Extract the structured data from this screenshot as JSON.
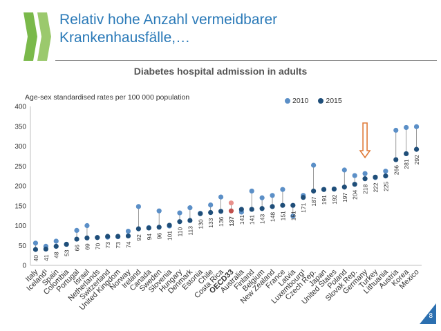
{
  "header": {
    "title_line1": "Relativ hohe Anzahl vermeidbarer",
    "title_line2": "Krankenhausfälle,…"
  },
  "page": {
    "number": "8"
  },
  "colors": {
    "c2010": "#5b8fc7",
    "c2015": "#1f4e79",
    "highlight2010": "#e8908b",
    "highlight2015": "#c0504d",
    "arrow": "#e07b39",
    "title": "#2b7ab8"
  },
  "chart_data": {
    "type": "dot",
    "title": "Diabetes hospital admission in adults",
    "ylabel": "Age-sex standardised rates per 100 000 population",
    "ylim": [
      0,
      400
    ],
    "yticks": [
      0,
      50,
      100,
      150,
      200,
      250,
      300,
      350,
      400
    ],
    "legend": [
      "2010",
      "2015"
    ],
    "highlight": "OECD33",
    "arrow_at": "Germany",
    "categories": [
      "Italy",
      "Iceland¹",
      "Spain",
      "Colombia",
      "Portugal",
      "Israel",
      "Netherlands",
      "Switzerland",
      "United Kingdom",
      "Norway",
      "Ireland",
      "Canada",
      "Sweden",
      "Slovenia",
      "Hungary",
      "Denmark",
      "Estonia",
      "Chile",
      "Costa Rica",
      "OECD33",
      "Australia",
      "Finland",
      "Belgium",
      "New Zealand",
      "France",
      "Latvia",
      "Luxembourg¹",
      "Czech Rep.",
      "Japan",
      "United States",
      "Poland",
      "Slovak Rep.",
      "Germany",
      "Turkey",
      "Lithuania",
      "Austria",
      "Korea",
      "Mexico"
    ],
    "series": [
      {
        "name": "2010",
        "values": [
          56,
          48,
          61,
          53,
          88,
          100,
          70,
          71,
          72,
          86,
          148,
          95,
          137,
          99,
          132,
          145,
          131,
          152,
          172,
          157,
          134,
          187,
          170,
          176,
          191,
          124,
          176,
          252,
          191,
          192,
          240,
          226,
          231,
          221,
          237,
          340,
          347,
          349
        ]
      },
      {
        "name": "2015",
        "values": [
          40,
          41,
          48,
          53,
          66,
          69,
          70,
          73,
          73,
          74,
          92,
          94,
          96,
          101,
          110,
          113,
          130,
          133,
          136,
          137,
          141,
          141,
          143,
          148,
          151,
          151,
          171,
          187,
          191,
          192,
          197,
          204,
          218,
          222,
          225,
          266,
          281,
          292
        ]
      }
    ]
  }
}
